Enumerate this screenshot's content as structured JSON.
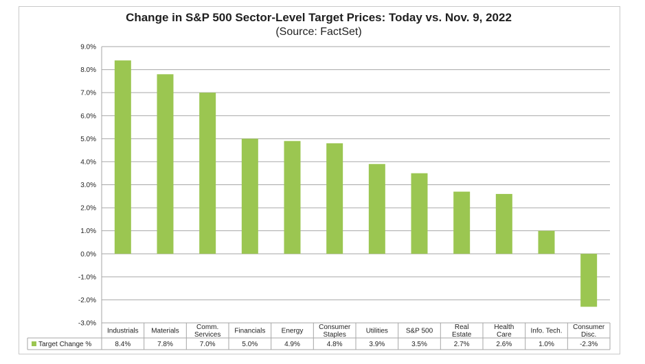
{
  "chart_data": {
    "type": "bar",
    "title": "Change in S&P 500 Sector-Level Target Prices: Today vs. Nov. 9, 2022",
    "subtitle": "(Source: FactSet)",
    "xlabel": "",
    "ylabel": "",
    "ylim": [
      -3.0,
      9.0
    ],
    "yticks": [
      "9.0%",
      "8.0%",
      "7.0%",
      "6.0%",
      "5.0%",
      "4.0%",
      "3.0%",
      "2.0%",
      "1.0%",
      "0.0%",
      "-1.0%",
      "-2.0%",
      "-3.0%"
    ],
    "ytick_values": [
      9,
      8,
      7,
      6,
      5,
      4,
      3,
      2,
      1,
      0,
      -1,
      -2,
      -3
    ],
    "grid": true,
    "bar_color": "#9bc651",
    "categories": [
      [
        "Industrials"
      ],
      [
        "Materials"
      ],
      [
        "Comm.",
        "Services"
      ],
      [
        "Financials"
      ],
      [
        "Energy"
      ],
      [
        "Consumer",
        "Staples"
      ],
      [
        "Utilities"
      ],
      [
        "S&P 500"
      ],
      [
        "Real",
        "Estate"
      ],
      [
        "Health",
        "Care"
      ],
      [
        "Info. Tech."
      ],
      [
        "Consumer",
        "Disc."
      ]
    ],
    "series": [
      {
        "name": "Target Change %",
        "values": [
          8.4,
          7.8,
          7.0,
          5.0,
          4.9,
          4.8,
          3.9,
          3.5,
          2.7,
          2.6,
          1.0,
          -2.3
        ],
        "labels": [
          "8.4%",
          "7.8%",
          "7.0%",
          "5.0%",
          "4.9%",
          "4.8%",
          "3.9%",
          "3.5%",
          "2.7%",
          "2.6%",
          "1.0%",
          "-2.3%"
        ]
      }
    ],
    "legend": "data table, left of value row"
  }
}
